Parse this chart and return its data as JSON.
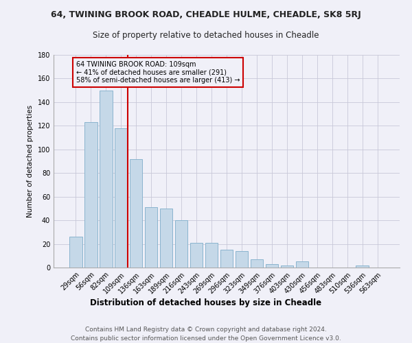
{
  "title": "64, TWINING BROOK ROAD, CHEADLE HULME, CHEADLE, SK8 5RJ",
  "subtitle": "Size of property relative to detached houses in Cheadle",
  "xlabel": "Distribution of detached houses by size in Cheadle",
  "ylabel": "Number of detached properties",
  "categories": [
    "29sqm",
    "56sqm",
    "82sqm",
    "109sqm",
    "136sqm",
    "163sqm",
    "189sqm",
    "216sqm",
    "243sqm",
    "269sqm",
    "296sqm",
    "323sqm",
    "349sqm",
    "376sqm",
    "403sqm",
    "430sqm",
    "456sqm",
    "483sqm",
    "510sqm",
    "536sqm",
    "563sqm"
  ],
  "values": [
    26,
    123,
    150,
    118,
    92,
    51,
    50,
    40,
    21,
    21,
    15,
    14,
    7,
    3,
    2,
    5,
    0,
    0,
    0,
    2,
    0
  ],
  "bar_color": "#c5d8e8",
  "bar_edge_color": "#8ab4ce",
  "vline_index": 3,
  "vline_color": "#cc0000",
  "annotation_text": "64 TWINING BROOK ROAD: 109sqm\n← 41% of detached houses are smaller (291)\n58% of semi-detached houses are larger (413) →",
  "annotation_box_color": "#cc0000",
  "ylim": [
    0,
    180
  ],
  "yticks": [
    0,
    20,
    40,
    60,
    80,
    100,
    120,
    140,
    160,
    180
  ],
  "footer1": "Contains HM Land Registry data © Crown copyright and database right 2024.",
  "footer2": "Contains public sector information licensed under the Open Government Licence v3.0.",
  "bg_color": "#f0f0f8",
  "grid_color": "#c8c8d8"
}
